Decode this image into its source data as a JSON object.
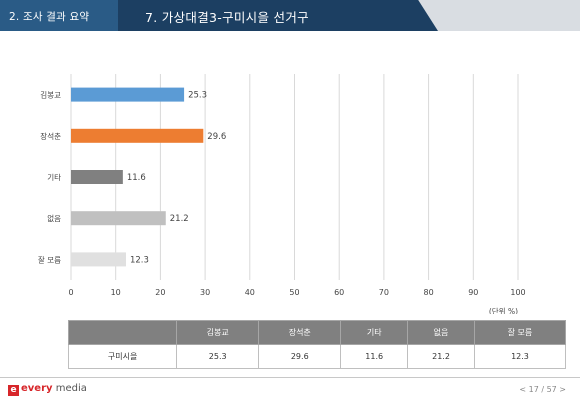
{
  "header": {
    "section": "2. 조사 결과 요약",
    "title": "7. 가상대결3-구미시을 선거구"
  },
  "chart_data": {
    "type": "bar",
    "orientation": "horizontal",
    "categories": [
      "김봉교",
      "장석춘",
      "기타",
      "없음",
      "잘 모름"
    ],
    "values": [
      25.3,
      29.6,
      11.6,
      21.2,
      12.3
    ],
    "colors": [
      "#5b9bd5",
      "#ed7d31",
      "#808080",
      "#c0c0c0",
      "#e0e0e0"
    ],
    "xlim": [
      0,
      100
    ],
    "xticks": [
      0,
      10,
      20,
      30,
      40,
      50,
      60,
      70,
      80,
      90,
      100
    ],
    "unit_label": "(단위 %)",
    "grid": true
  },
  "table": {
    "columns": [
      "김봉교",
      "장석춘",
      "기타",
      "없음",
      "잘 모름"
    ],
    "row_label": "구미시을",
    "values": [
      "25.3",
      "29.6",
      "11.6",
      "21.2",
      "12.3"
    ]
  },
  "footer": {
    "logo_mark": "e",
    "logo_brand": "every",
    "logo_sub": " media",
    "page": "< 17 / 57 >"
  }
}
